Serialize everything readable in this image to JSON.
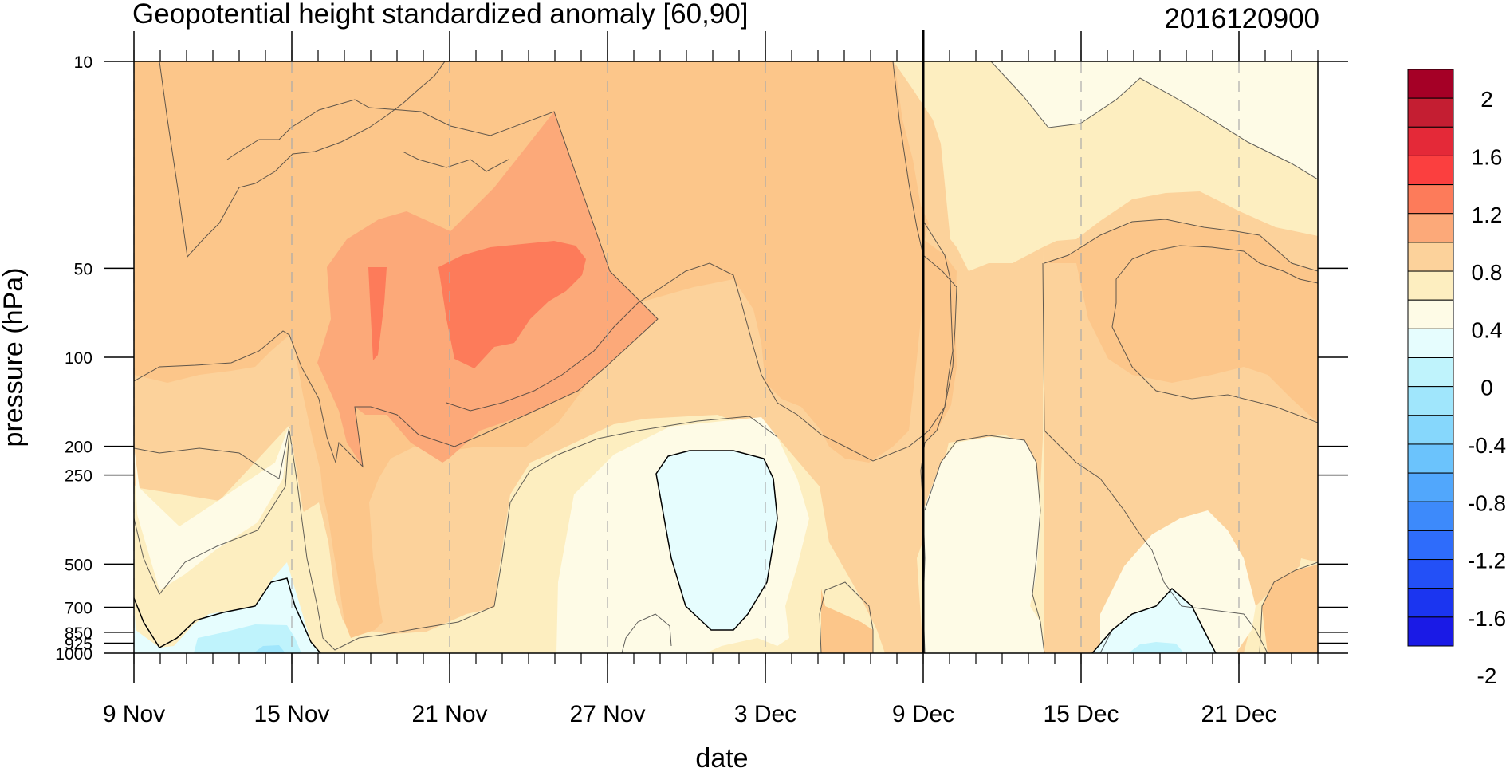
{
  "chart_data": {
    "type": "heatmap",
    "title": "Geopotential height standardized anomaly [60,90]",
    "subtitle": "2016120900",
    "xlabel": "date",
    "ylabel": "pressure (hPa)",
    "x_ticks": [
      {
        "date": "2016-11-09",
        "label": "9 Nov"
      },
      {
        "date": "2016-11-15",
        "label": "15 Nov"
      },
      {
        "date": "2016-11-21",
        "label": "21 Nov"
      },
      {
        "date": "2016-11-27",
        "label": "27 Nov"
      },
      {
        "date": "2016-12-03",
        "label": "3 Dec"
      },
      {
        "date": "2016-12-09",
        "label": "9 Dec"
      },
      {
        "date": "2016-12-15",
        "label": "15 Dec"
      },
      {
        "date": "2016-12-21",
        "label": "21 Dec"
      }
    ],
    "xlim": [
      "2016-11-09",
      "2016-12-24"
    ],
    "y_ticks": [
      10,
      50,
      100,
      200,
      250,
      500,
      700,
      850,
      925,
      1000
    ],
    "y_scale": "log",
    "ylim": [
      1000,
      10
    ],
    "vertical_marker": "2016-12-09",
    "contour_levels": [
      -2,
      -1.8,
      -1.6,
      -1.4,
      -1.2,
      -1.0,
      -0.8,
      -0.6,
      -0.4,
      -0.2,
      0,
      0.2,
      0.4,
      0.6,
      0.8,
      1.0,
      1.2,
      1.4,
      1.6,
      1.8,
      2
    ],
    "colorbar_labels": [
      "2",
      "1.6",
      "1.2",
      "0.8",
      "0.4",
      "0",
      "-0.4",
      "-0.8",
      "-1.2",
      "-1.6",
      "-2"
    ],
    "colorbar_colors": [
      "#a50026",
      "#c41e32",
      "#e42938",
      "#fb3f3f",
      "#fd7b5a",
      "#fca979",
      "#fcd29b",
      "#fdeec0",
      "#fefbe6",
      "#e6fdfe",
      "#bff3fc",
      "#a0e6fc",
      "#86d7fc",
      "#6bc3fc",
      "#51a7fc",
      "#3d8afb",
      "#2e6cfb",
      "#2350f7",
      "#1b35f0",
      "#1a1ae6"
    ]
  }
}
